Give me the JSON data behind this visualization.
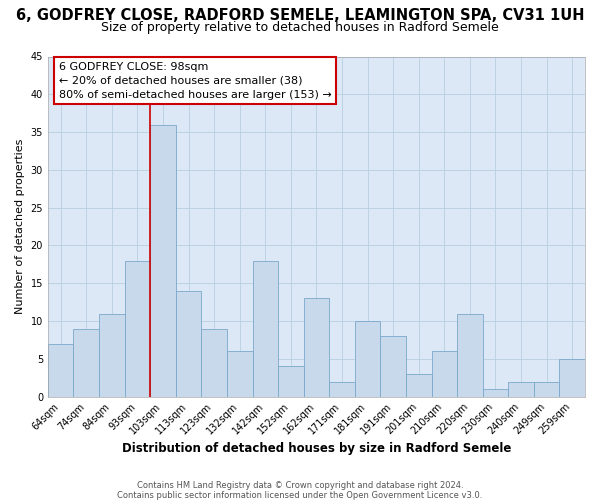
{
  "title": "6, GODFREY CLOSE, RADFORD SEMELE, LEAMINGTON SPA, CV31 1UH",
  "subtitle": "Size of property relative to detached houses in Radford Semele",
  "xlabel": "Distribution of detached houses by size in Radford Semele",
  "ylabel": "Number of detached properties",
  "categories": [
    "64sqm",
    "74sqm",
    "84sqm",
    "93sqm",
    "103sqm",
    "113sqm",
    "123sqm",
    "132sqm",
    "142sqm",
    "152sqm",
    "162sqm",
    "171sqm",
    "181sqm",
    "191sqm",
    "201sqm",
    "210sqm",
    "220sqm",
    "230sqm",
    "240sqm",
    "249sqm",
    "259sqm"
  ],
  "values": [
    7,
    9,
    11,
    18,
    36,
    14,
    9,
    6,
    18,
    4,
    13,
    2,
    10,
    8,
    3,
    6,
    11,
    1,
    2,
    2,
    5
  ],
  "bar_color": "#c9d9ec",
  "bar_edge_color": "#7aa8cc",
  "ylim": [
    0,
    45
  ],
  "yticks": [
    0,
    5,
    10,
    15,
    20,
    25,
    30,
    35,
    40,
    45
  ],
  "vline_index": 4,
  "vline_color": "#cc0000",
  "annotation_title": "6 GODFREY CLOSE: 98sqm",
  "annotation_line1": "← 20% of detached houses are smaller (38)",
  "annotation_line2": "80% of semi-detached houses are larger (153) →",
  "annotation_box_color": "#cc0000",
  "footer1": "Contains HM Land Registry data © Crown copyright and database right 2024.",
  "footer2": "Contains public sector information licensed under the Open Government Licence v3.0.",
  "bg_color": "#ffffff",
  "plot_bg_color": "#dce8f5",
  "grid_color": "#b8cfe0",
  "title_fontsize": 10.5,
  "subtitle_fontsize": 9,
  "xlabel_fontsize": 8.5,
  "ylabel_fontsize": 8,
  "tick_fontsize": 7,
  "annotation_fontsize": 8,
  "footer_fontsize": 6
}
